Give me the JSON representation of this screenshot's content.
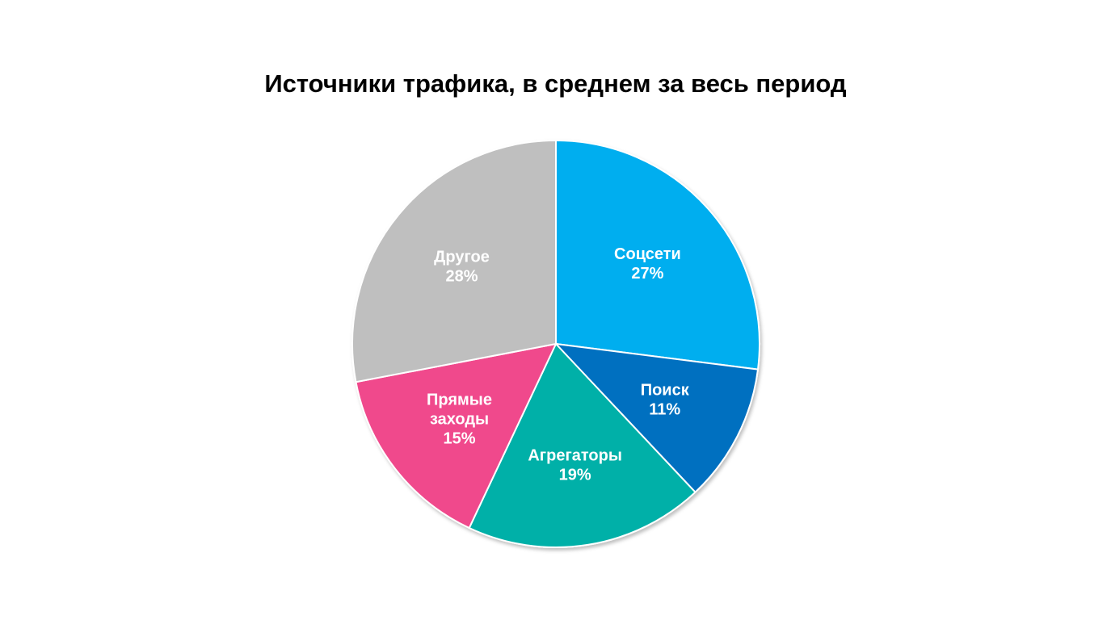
{
  "chart_data": {
    "type": "pie",
    "title": "Источники трафика, в среднем за весь период",
    "slices": [
      {
        "label": [
          "Соцсети"
        ],
        "value": 27,
        "value_label": "27%",
        "color": "#00AEEF"
      },
      {
        "label": [
          "Поиск"
        ],
        "value": 11,
        "value_label": "11%",
        "color": "#0070C0"
      },
      {
        "label": [
          "Агрегаторы"
        ],
        "value": 19,
        "value_label": "19%",
        "color": "#00B0A8"
      },
      {
        "label": [
          "Прямые",
          "заходы"
        ],
        "value": 15,
        "value_label": "15%",
        "color": "#F0498C"
      },
      {
        "label": [
          "Другое"
        ],
        "value": 28,
        "value_label": "28%",
        "color": "#BFBFBF"
      }
    ]
  }
}
